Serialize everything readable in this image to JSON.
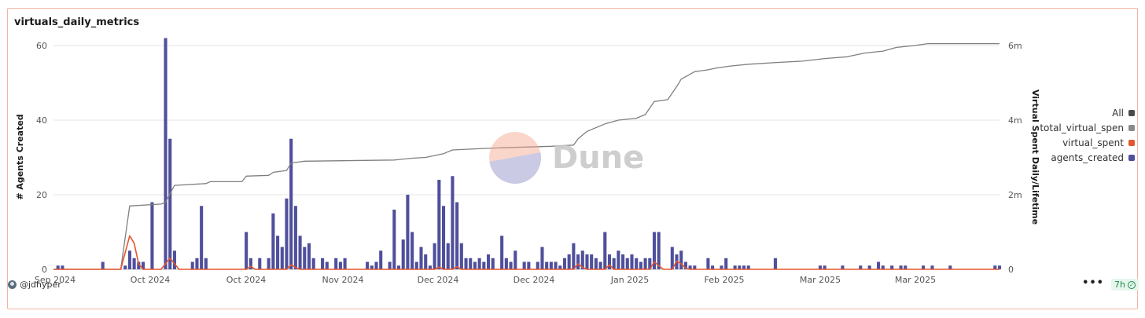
{
  "header": {
    "title": "virtuals_daily_metrics"
  },
  "footer": {
    "user": "@jdhyper",
    "age": "7h",
    "more": "•••"
  },
  "watermark": {
    "text": "Dune"
  },
  "colors": {
    "bars": "#4f4f9c",
    "virtual_spent": "#e4562f",
    "total": "#7f7f7f",
    "all": "#4a4a4a"
  },
  "legend": [
    {
      "label": "All",
      "color": "#4a4a4a"
    },
    {
      "label": "total_virtual_spen",
      "color": "#8a8a8a"
    },
    {
      "label": "virtual_spent",
      "color": "#e4562f"
    },
    {
      "label": "agents_created",
      "color": "#4f4f9c"
    }
  ],
  "chart_data": {
    "type": "bar",
    "title": "virtuals_daily_metrics",
    "ylabel": "# Agents Created",
    "y2label": "Virtual Spent Daily/Lifetime",
    "ylim": [
      0,
      60
    ],
    "y2lim": [
      0,
      6000000
    ],
    "yticks": [
      0,
      20,
      40,
      60
    ],
    "yticks_labels": [
      "0",
      "20",
      "40",
      "60"
    ],
    "y2ticks": [
      0,
      2000000,
      4000000,
      6000000
    ],
    "y2ticks_labels": [
      "0",
      "2m",
      "4m",
      "6m"
    ],
    "x_start": "2024-09-01",
    "x_end": "2025-03-31",
    "xticks": [
      {
        "date": "2024-09-01",
        "label": "Sep 2024"
      },
      {
        "date": "2024-10-01",
        "label": "Oct 2024"
      },
      {
        "date": "2024-10-31",
        "label": "Oct 2024"
      },
      {
        "date": "2024-11-30",
        "label": "Nov 2024"
      },
      {
        "date": "2024-12-30",
        "label": "Dec 2024"
      },
      {
        "date": "2025-01-29",
        "label": "Dec 2024"
      },
      {
        "date": "2025-02-28",
        "label": "Jan 2025"
      },
      {
        "date": "2025-03-30",
        "label": "Feb 2025"
      },
      {
        "date": "2025-04-29",
        "label": "Mar 2025"
      },
      {
        "date": "2025-05-29",
        "label": "Mar 2025"
      }
    ],
    "legend_position": "right",
    "grid": true,
    "series": [
      {
        "name": "agents_created",
        "type": "bar",
        "axis": "left",
        "data": [
          [
            "2024-09-02",
            1
          ],
          [
            "2024-09-03",
            1
          ],
          [
            "2024-09-12",
            2
          ],
          [
            "2024-09-17",
            1
          ],
          [
            "2024-09-18",
            5
          ],
          [
            "2024-09-19",
            3
          ],
          [
            "2024-09-20",
            2
          ],
          [
            "2024-09-21",
            2
          ],
          [
            "2024-09-23",
            18
          ],
          [
            "2024-09-26",
            62
          ],
          [
            "2024-09-27",
            35
          ],
          [
            "2024-09-28",
            5
          ],
          [
            "2024-10-02",
            2
          ],
          [
            "2024-10-03",
            3
          ],
          [
            "2024-10-04",
            17
          ],
          [
            "2024-10-05",
            3
          ],
          [
            "2024-10-14",
            10
          ],
          [
            "2024-10-15",
            3
          ],
          [
            "2024-10-17",
            3
          ],
          [
            "2024-10-19",
            3
          ],
          [
            "2024-10-20",
            15
          ],
          [
            "2024-10-21",
            9
          ],
          [
            "2024-10-22",
            6
          ],
          [
            "2024-10-23",
            19
          ],
          [
            "2024-10-24",
            35
          ],
          [
            "2024-10-25",
            17
          ],
          [
            "2024-10-26",
            9
          ],
          [
            "2024-10-27",
            6
          ],
          [
            "2024-10-28",
            7
          ],
          [
            "2024-10-29",
            3
          ],
          [
            "2024-10-31",
            3
          ],
          [
            "2024-11-01",
            2
          ],
          [
            "2024-11-03",
            3
          ],
          [
            "2024-11-04",
            2
          ],
          [
            "2024-11-05",
            3
          ],
          [
            "2024-11-10",
            2
          ],
          [
            "2024-11-11",
            1
          ],
          [
            "2024-11-12",
            2
          ],
          [
            "2024-11-13",
            5
          ],
          [
            "2024-11-15",
            2
          ],
          [
            "2024-11-16",
            16
          ],
          [
            "2024-11-17",
            1
          ],
          [
            "2024-11-18",
            8
          ],
          [
            "2024-11-19",
            20
          ],
          [
            "2024-11-20",
            10
          ],
          [
            "2024-11-21",
            2
          ],
          [
            "2024-11-22",
            6
          ],
          [
            "2024-11-23",
            4
          ],
          [
            "2024-11-24",
            1
          ],
          [
            "2024-11-25",
            7
          ],
          [
            "2024-11-26",
            24
          ],
          [
            "2024-11-27",
            17
          ],
          [
            "2024-11-28",
            7
          ],
          [
            "2024-11-29",
            25
          ],
          [
            "2024-11-30",
            18
          ],
          [
            "2024-12-01",
            7
          ],
          [
            "2024-12-02",
            3
          ],
          [
            "2024-12-03",
            3
          ],
          [
            "2024-12-04",
            2
          ],
          [
            "2024-12-05",
            3
          ],
          [
            "2024-12-06",
            2
          ],
          [
            "2024-12-07",
            4
          ],
          [
            "2024-12-08",
            3
          ],
          [
            "2024-12-10",
            9
          ],
          [
            "2024-12-11",
            3
          ],
          [
            "2024-12-12",
            2
          ],
          [
            "2024-12-13",
            5
          ],
          [
            "2024-12-15",
            2
          ],
          [
            "2024-12-16",
            2
          ],
          [
            "2024-12-18",
            2
          ],
          [
            "2024-12-19",
            6
          ],
          [
            "2024-12-20",
            2
          ],
          [
            "2024-12-21",
            2
          ],
          [
            "2024-12-22",
            2
          ],
          [
            "2024-12-23",
            1
          ],
          [
            "2024-12-24",
            3
          ],
          [
            "2024-12-25",
            4
          ],
          [
            "2024-12-26",
            7
          ],
          [
            "2024-12-27",
            4
          ],
          [
            "2024-12-28",
            5
          ],
          [
            "2024-12-29",
            4
          ],
          [
            "2024-12-30",
            4
          ],
          [
            "2024-12-31",
            3
          ],
          [
            "2025-01-01",
            2
          ],
          [
            "2025-01-02",
            10
          ],
          [
            "2025-01-03",
            4
          ],
          [
            "2025-01-04",
            3
          ],
          [
            "2025-01-05",
            5
          ],
          [
            "2025-01-06",
            4
          ],
          [
            "2025-01-07",
            3
          ],
          [
            "2025-01-08",
            4
          ],
          [
            "2025-01-09",
            3
          ],
          [
            "2025-01-10",
            2
          ],
          [
            "2025-01-11",
            3
          ],
          [
            "2025-01-12",
            3
          ],
          [
            "2025-01-13",
            10
          ],
          [
            "2025-01-14",
            10
          ],
          [
            "2025-01-17",
            6
          ],
          [
            "2025-01-18",
            4
          ],
          [
            "2025-01-19",
            5
          ],
          [
            "2025-01-20",
            2
          ],
          [
            "2025-01-21",
            1
          ],
          [
            "2025-01-22",
            1
          ],
          [
            "2025-01-25",
            3
          ],
          [
            "2025-01-26",
            1
          ],
          [
            "2025-01-28",
            1
          ],
          [
            "2025-01-29",
            3
          ],
          [
            "2025-01-31",
            1
          ],
          [
            "2025-02-01",
            1
          ],
          [
            "2025-02-02",
            1
          ],
          [
            "2025-02-03",
            1
          ],
          [
            "2025-02-09",
            3
          ],
          [
            "2025-02-19",
            1
          ],
          [
            "2025-02-20",
            1
          ],
          [
            "2025-02-24",
            1
          ],
          [
            "2025-02-28",
            1
          ],
          [
            "2025-03-02",
            1
          ],
          [
            "2025-03-04",
            2
          ],
          [
            "2025-03-05",
            1
          ],
          [
            "2025-03-07",
            1
          ],
          [
            "2025-03-09",
            1
          ],
          [
            "2025-03-10",
            1
          ],
          [
            "2025-03-14",
            1
          ],
          [
            "2025-03-16",
            1
          ],
          [
            "2025-03-20",
            1
          ],
          [
            "2025-03-30",
            1
          ],
          [
            "2025-03-31",
            1
          ]
        ]
      },
      {
        "name": "virtual_spent",
        "type": "line",
        "axis": "right",
        "data": [
          [
            "2024-09-01",
            0
          ],
          [
            "2024-09-16",
            0
          ],
          [
            "2024-09-18",
            900000
          ],
          [
            "2024-09-19",
            700000
          ],
          [
            "2024-09-20",
            150000
          ],
          [
            "2024-09-21",
            0
          ],
          [
            "2024-09-25",
            0
          ],
          [
            "2024-09-26",
            150000
          ],
          [
            "2024-09-27",
            300000
          ],
          [
            "2024-09-28",
            150000
          ],
          [
            "2024-09-29",
            0
          ],
          [
            "2024-10-14",
            0
          ],
          [
            "2024-10-15",
            80000
          ],
          [
            "2024-10-16",
            0
          ],
          [
            "2024-10-23",
            0
          ],
          [
            "2024-10-24",
            120000
          ],
          [
            "2024-10-25",
            50000
          ],
          [
            "2024-10-26",
            0
          ],
          [
            "2024-11-25",
            0
          ],
          [
            "2024-11-26",
            60000
          ],
          [
            "2024-11-27",
            0
          ],
          [
            "2024-11-29",
            0
          ],
          [
            "2024-11-30",
            70000
          ],
          [
            "2024-12-01",
            0
          ],
          [
            "2024-12-26",
            0
          ],
          [
            "2024-12-27",
            150000
          ],
          [
            "2024-12-28",
            50000
          ],
          [
            "2024-12-29",
            0
          ],
          [
            "2025-01-02",
            0
          ],
          [
            "2025-01-03",
            120000
          ],
          [
            "2025-01-04",
            0
          ],
          [
            "2025-01-12",
            0
          ],
          [
            "2025-01-13",
            200000
          ],
          [
            "2025-01-14",
            100000
          ],
          [
            "2025-01-15",
            0
          ],
          [
            "2025-01-17",
            0
          ],
          [
            "2025-01-18",
            220000
          ],
          [
            "2025-01-19",
            150000
          ],
          [
            "2025-01-20",
            30000
          ],
          [
            "2025-01-21",
            0
          ],
          [
            "2025-03-31",
            0
          ]
        ]
      },
      {
        "name": "total_virtual_spen",
        "type": "line",
        "axis": "right",
        "data": [
          [
            "2024-09-01",
            0
          ],
          [
            "2024-09-16",
            0
          ],
          [
            "2024-09-18",
            1700000
          ],
          [
            "2024-09-25",
            1750000
          ],
          [
            "2024-09-26",
            1800000
          ],
          [
            "2024-09-28",
            2250000
          ],
          [
            "2024-10-05",
            2300000
          ],
          [
            "2024-10-06",
            2350000
          ],
          [
            "2024-10-13",
            2350000
          ],
          [
            "2024-10-14",
            2500000
          ],
          [
            "2024-10-19",
            2520000
          ],
          [
            "2024-10-20",
            2600000
          ],
          [
            "2024-10-23",
            2650000
          ],
          [
            "2024-10-24",
            2850000
          ],
          [
            "2024-10-27",
            2900000
          ],
          [
            "2024-11-16",
            2930000
          ],
          [
            "2024-11-20",
            2980000
          ],
          [
            "2024-11-23",
            3000000
          ],
          [
            "2024-11-25",
            3050000
          ],
          [
            "2024-11-27",
            3100000
          ],
          [
            "2024-11-29",
            3200000
          ],
          [
            "2024-12-04",
            3230000
          ],
          [
            "2024-12-10",
            3260000
          ],
          [
            "2024-12-21",
            3300000
          ],
          [
            "2024-12-26",
            3330000
          ],
          [
            "2024-12-27",
            3500000
          ],
          [
            "2024-12-29",
            3700000
          ],
          [
            "2025-01-02",
            3900000
          ],
          [
            "2025-01-05",
            4000000
          ],
          [
            "2025-01-09",
            4050000
          ],
          [
            "2025-01-11",
            4150000
          ],
          [
            "2025-01-13",
            4500000
          ],
          [
            "2025-01-16",
            4550000
          ],
          [
            "2025-01-18",
            4900000
          ],
          [
            "2025-01-19",
            5100000
          ],
          [
            "2025-01-22",
            5300000
          ],
          [
            "2025-01-25",
            5350000
          ],
          [
            "2025-01-27",
            5400000
          ],
          [
            "2025-01-30",
            5450000
          ],
          [
            "2025-02-03",
            5500000
          ],
          [
            "2025-02-10",
            5550000
          ],
          [
            "2025-02-15",
            5580000
          ],
          [
            "2025-02-20",
            5650000
          ],
          [
            "2025-02-25",
            5700000
          ],
          [
            "2025-03-01",
            5800000
          ],
          [
            "2025-03-05",
            5850000
          ],
          [
            "2025-03-08",
            5950000
          ],
          [
            "2025-03-12",
            6000000
          ],
          [
            "2025-03-15",
            6050000
          ],
          [
            "2025-03-31",
            6050000
          ]
        ]
      }
    ]
  }
}
